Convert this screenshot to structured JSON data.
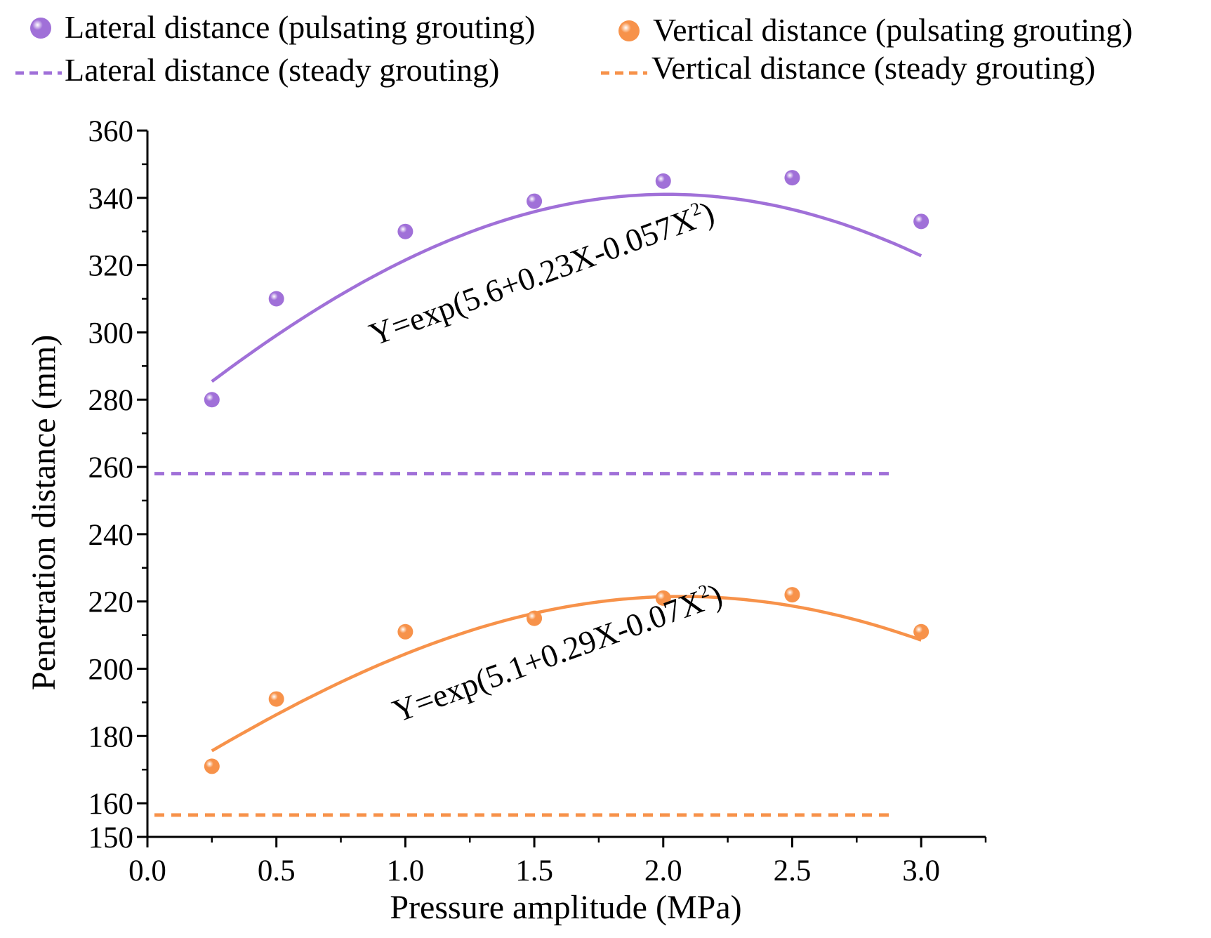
{
  "chart_data": {
    "type": "scatter",
    "title": "",
    "xlabel": "Pressure amplitude (MPa)",
    "ylabel": "Penetration distance (mm)",
    "xlim": [
      0.0,
      3.25
    ],
    "ylim": [
      150,
      360
    ],
    "x_ticks": [
      0.0,
      0.5,
      1.0,
      1.5,
      2.0,
      2.5,
      3.0
    ],
    "x_tick_labels": [
      "0.0",
      "0.5",
      "1.0",
      "1.5",
      "2.0",
      "2.5",
      "3.0"
    ],
    "y_ticks": [
      150,
      160,
      180,
      200,
      220,
      240,
      260,
      280,
      300,
      320,
      340,
      360
    ],
    "y_tick_labels": [
      "150",
      "160",
      "180",
      "200",
      "220",
      "240",
      "260",
      "280",
      "300",
      "320",
      "340",
      "360"
    ],
    "legend_position": "top",
    "series": [
      {
        "name": "Lateral  distance (pulsating grouting)",
        "kind": "points",
        "color": "#a070d8",
        "x": [
          0.25,
          0.5,
          1.0,
          1.5,
          2.0,
          2.5,
          3.0
        ],
        "y": [
          280,
          310,
          330,
          339,
          345,
          346,
          333
        ]
      },
      {
        "name": "Vertical  distance (pulsating grouting)",
        "kind": "points",
        "color": "#f7924a",
        "x": [
          0.25,
          0.5,
          1.0,
          1.5,
          2.0,
          2.5,
          3.0
        ],
        "y": [
          171,
          191,
          211,
          215,
          221,
          222,
          211
        ]
      },
      {
        "name": "Lateral  distance (steady grouting)",
        "kind": "dashed-line",
        "color": "#a070d8",
        "x": [
          0.0,
          2.9
        ],
        "y": [
          258,
          258
        ]
      },
      {
        "name": "Vertical  distance (steady grouting)",
        "kind": "dashed-line",
        "color": "#f7924a",
        "x": [
          0.0,
          2.9
        ],
        "y": [
          156.5,
          156.5
        ]
      }
    ],
    "fits": [
      {
        "series": "Lateral  distance (pulsating grouting)",
        "color": "#a070d8",
        "a": 5.6,
        "b": 0.23,
        "c": -0.057,
        "x_range": [
          0.25,
          3.0
        ],
        "label_prefix": "Y=exp(5.6+0.23X-0.057X",
        "label_sup": "2",
        "label_suffix": ")",
        "label_anchor_x": 0.88,
        "label_anchor_y": 296,
        "label_rotation_deg": -20
      },
      {
        "series": "Vertical  distance (pulsating grouting)",
        "color": "#f7924a",
        "a": 5.1,
        "b": 0.29,
        "c": -0.07,
        "x_range": [
          0.25,
          3.0
        ],
        "label_prefix": "Y=exp(5.1+0.29X-0.07X",
        "label_sup": "2",
        "label_suffix": ")",
        "label_anchor_x": 0.97,
        "label_anchor_y": 184,
        "label_rotation_deg": -20
      }
    ]
  }
}
